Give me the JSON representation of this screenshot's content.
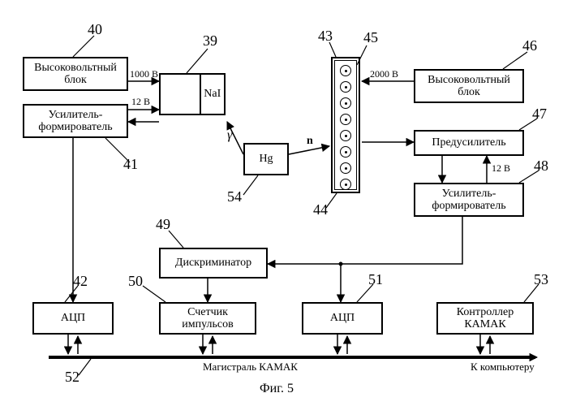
{
  "blocks": {
    "hv1": {
      "text": "Высоковольтный\nблок",
      "num": "40"
    },
    "amp1": {
      "text": "Усилитель-\nформирователь",
      "num": "41"
    },
    "nai": {
      "left": "",
      "right": "NaI",
      "num": "39"
    },
    "hg": {
      "text": "Hg",
      "num": "54"
    },
    "hv2": {
      "text": "Высоковольтный\nблок",
      "num": "46"
    },
    "pre": {
      "text": "Предусилитель",
      "num": "47"
    },
    "amp2": {
      "text": "Усилитель-\nформирователь",
      "num": "48"
    },
    "disc": {
      "text": "Дискриминатор",
      "num": "49"
    },
    "adc1": {
      "text": "АЦП",
      "num": "42"
    },
    "cnt": {
      "text": "Счетчик\nимпульсов",
      "num": "50"
    },
    "adc2": {
      "text": "АЦП",
      "num": "51"
    },
    "ctrl": {
      "text": "Контроллер\nКАМАК",
      "num": "53"
    }
  },
  "detector": {
    "num_outer": "43",
    "num_inner": "45",
    "num_bottom": "44"
  },
  "edge_labels": {
    "v1000": "1000 В",
    "v12a": "12 В",
    "v2000": "2000 В",
    "v12b": "12 В",
    "gamma": "γ",
    "n": "n"
  },
  "bus": {
    "label": "Магистраль КАМАК",
    "num": "52",
    "out": "К компьютеру"
  },
  "caption": "Фиг. 5"
}
